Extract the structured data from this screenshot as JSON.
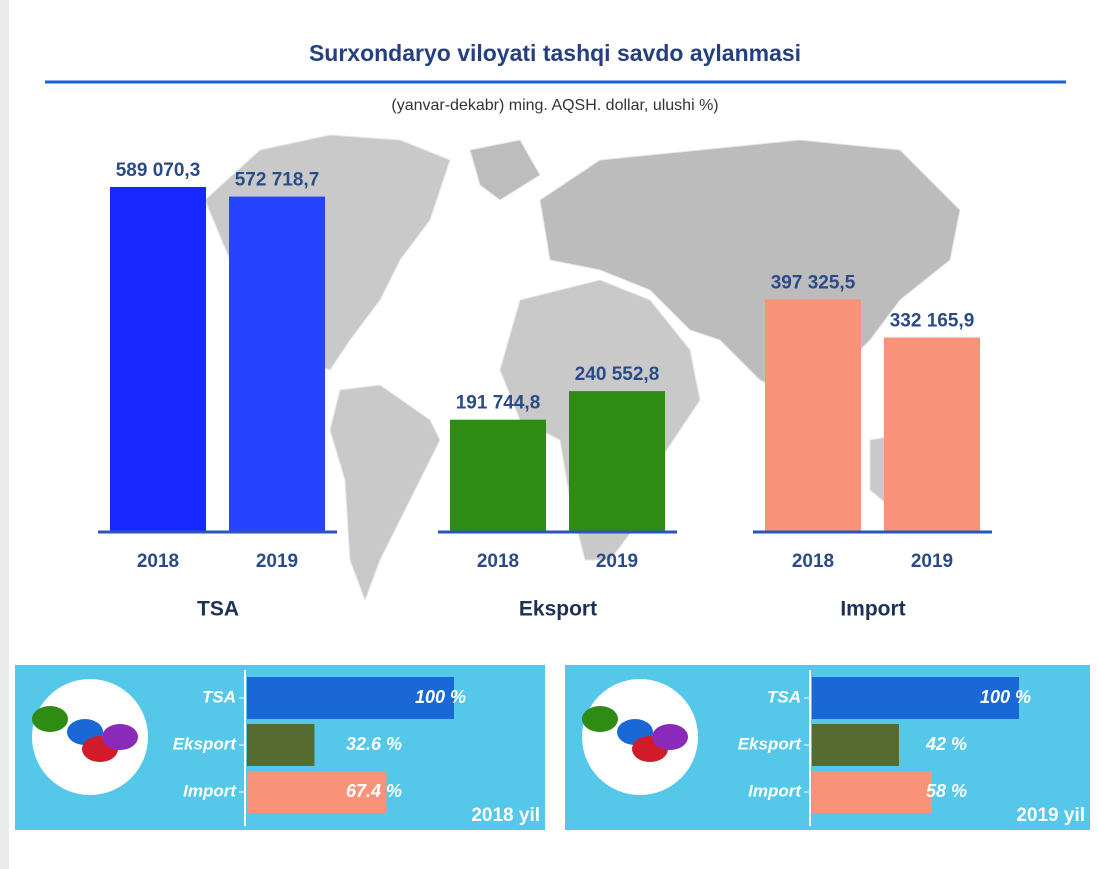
{
  "chart_data": [
    {
      "type": "bar",
      "title": "Surxondaryo viloyati tashqi savdo aylanmasi",
      "subtitle": "(yanvar-dekabr) ming. AQSH. dollar, ulushi %)",
      "groups": [
        {
          "name": "TSA",
          "categories": [
            "2018",
            "2019"
          ],
          "values": [
            589070.3,
            572718.7
          ],
          "value_labels": [
            "589 070,3",
            "572 718,7"
          ],
          "colors": [
            "#1428ff",
            "#2743ff"
          ]
        },
        {
          "name": "Eksport",
          "categories": [
            "2018",
            "2019"
          ],
          "values": [
            191744.8,
            240552.8
          ],
          "value_labels": [
            "191 744,8",
            "240 552,8"
          ],
          "colors": [
            "#2e8b14",
            "#2e8b14"
          ]
        },
        {
          "name": "Import",
          "categories": [
            "2018",
            "2019"
          ],
          "values": [
            397325.5,
            332165.9
          ],
          "value_labels": [
            "397 325,5",
            "332 165,9"
          ],
          "colors": [
            "#f8937a",
            "#f8937a"
          ]
        }
      ]
    },
    {
      "type": "hbar",
      "annotation": "2018 yil",
      "categories": [
        "TSA",
        "Eksport",
        "Import"
      ],
      "values": [
        100,
        32.6,
        67.4
      ],
      "value_labels": [
        "100 %",
        "32.6 %",
        "67.4 %"
      ],
      "colors": [
        "#1a68d6",
        "#556b2f",
        "#f8937a"
      ]
    },
    {
      "type": "hbar",
      "annotation": "2019 yil",
      "categories": [
        "TSA",
        "Eksport",
        "Import"
      ],
      "values": [
        100,
        42,
        58
      ],
      "value_labels": [
        "100 %",
        "42 %",
        "58 %"
      ],
      "colors": [
        "#1a68d6",
        "#556b2f",
        "#f8937a"
      ]
    }
  ]
}
